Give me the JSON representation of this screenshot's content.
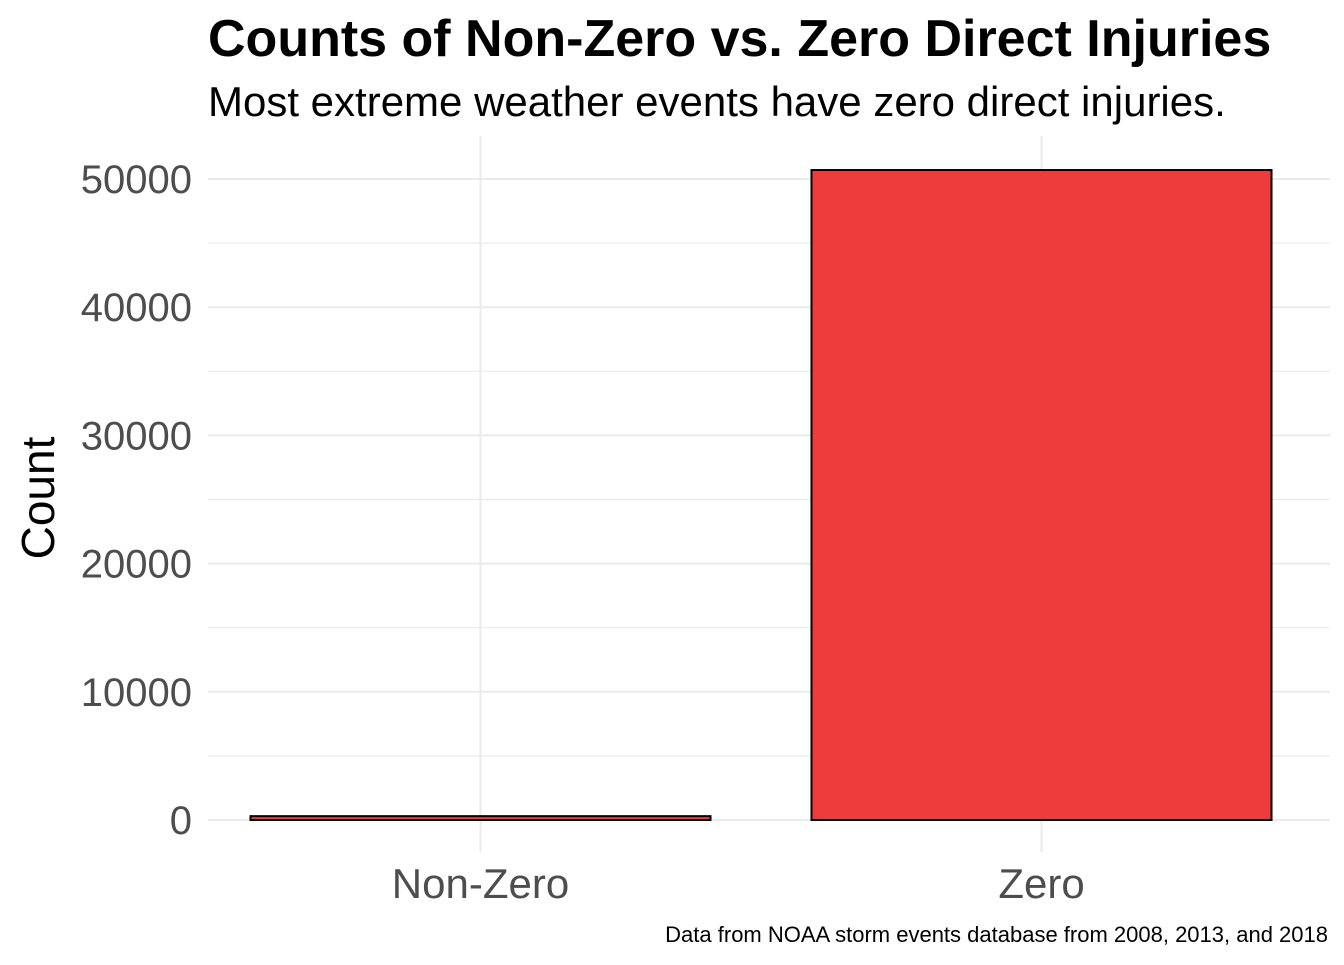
{
  "chart_data": {
    "type": "bar",
    "title": "Counts of Non-Zero vs. Zero Direct Injuries",
    "subtitle": "Most extreme weather events have zero direct injuries.",
    "caption": "Data from NOAA storm events database from 2008, 2013, and 2018",
    "xlabel": "",
    "ylabel": "Count",
    "categories": [
      "Non-Zero",
      "Zero"
    ],
    "values": [
      300,
      50700
    ],
    "ylim": [
      0,
      53000
    ],
    "yticks": [
      0,
      10000,
      20000,
      30000,
      40000,
      50000
    ],
    "ytick_labels": [
      "0",
      "10000",
      "20000",
      "30000",
      "40000",
      "50000"
    ],
    "grid": true,
    "legend": "none",
    "colors": {
      "bar_fill": "#EE3B3B",
      "bar_stroke": "#000000",
      "grid": "#ebebeb",
      "tick_text": "#4d4d4d",
      "title_text": "#000000"
    }
  }
}
